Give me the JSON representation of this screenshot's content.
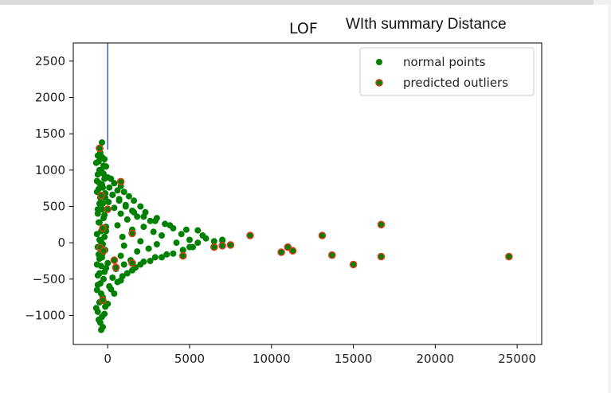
{
  "window": {
    "title": "LOF",
    "subtitle": "WIth summary Distance"
  },
  "colors": {
    "normal": "#008000",
    "outlier_edge": "#d2401a",
    "vline": "#1f4e96",
    "axes": "#000000"
  },
  "chart_data": {
    "type": "scatter",
    "title": "LOF",
    "xlabel": "",
    "ylabel": "",
    "xlim": [
      -2100,
      26500
    ],
    "ylim": [
      -1400,
      2750
    ],
    "x_ticks": [
      0,
      5000,
      10000,
      15000,
      20000,
      25000
    ],
    "y_ticks": [
      -1000,
      -500,
      0,
      500,
      1000,
      1500,
      2000,
      2500
    ],
    "vline_x": 0,
    "grid": false,
    "legend_position": "top-right",
    "series": [
      {
        "name": "normal points",
        "marker": "filled-circle",
        "color": "#008000",
        "points": [
          [
            -450,
            1300
          ],
          [
            -350,
            1380
          ],
          [
            -600,
            1200
          ],
          [
            -200,
            1150
          ],
          [
            -700,
            1100
          ],
          [
            -100,
            1050
          ],
          [
            -500,
            1000
          ],
          [
            -250,
            950
          ],
          [
            0,
            900
          ],
          [
            200,
            880
          ],
          [
            -650,
            850
          ],
          [
            400,
            820
          ],
          [
            -350,
            800
          ],
          [
            800,
            780
          ],
          [
            100,
            760
          ],
          [
            -550,
            740
          ],
          [
            600,
            720
          ],
          [
            1000,
            700
          ],
          [
            -150,
            680
          ],
          [
            300,
            660
          ],
          [
            1300,
            640
          ],
          [
            -450,
            620
          ],
          [
            700,
            600
          ],
          [
            1600,
            580
          ],
          [
            50,
            560
          ],
          [
            -300,
            540
          ],
          [
            1100,
            520
          ],
          [
            2000,
            500
          ],
          [
            400,
            480
          ],
          [
            -600,
            460
          ],
          [
            1500,
            440
          ],
          [
            2300,
            420
          ],
          [
            800,
            400
          ],
          [
            -200,
            380
          ],
          [
            1800,
            360
          ],
          [
            3000,
            340
          ],
          [
            1200,
            320
          ],
          [
            2600,
            300
          ],
          [
            -500,
            280
          ],
          [
            3500,
            260
          ],
          [
            600,
            240
          ],
          [
            2200,
            220
          ],
          [
            4000,
            200
          ],
          [
            1500,
            180
          ],
          [
            -100,
            160
          ],
          [
            2800,
            150
          ],
          [
            5500,
            170
          ],
          [
            4500,
            120
          ],
          [
            3300,
            100
          ],
          [
            900,
            80
          ],
          [
            6000,
            60
          ],
          [
            5000,
            40
          ],
          [
            2000,
            20
          ],
          [
            -400,
            10
          ],
          [
            7000,
            40
          ],
          [
            4200,
            0
          ],
          [
            3000,
            -20
          ],
          [
            1000,
            -40
          ],
          [
            -600,
            -60
          ],
          [
            5200,
            -60
          ],
          [
            2500,
            -80
          ],
          [
            4600,
            -100
          ],
          [
            1800,
            -120
          ],
          [
            -300,
            -140
          ],
          [
            3600,
            -160
          ],
          [
            800,
            -180
          ],
          [
            2900,
            -200
          ],
          [
            -500,
            -220
          ],
          [
            1400,
            -240
          ],
          [
            2200,
            -260
          ],
          [
            0,
            -280
          ],
          [
            1000,
            -300
          ],
          [
            -400,
            -320
          ],
          [
            1700,
            -340
          ],
          [
            500,
            -360
          ],
          [
            -200,
            -400
          ],
          [
            1200,
            -420
          ],
          [
            -600,
            -450
          ],
          [
            300,
            -480
          ],
          [
            800,
            -520
          ],
          [
            -450,
            -560
          ],
          [
            100,
            -600
          ],
          [
            -650,
            -650
          ],
          [
            400,
            -700
          ],
          [
            -300,
            -750
          ],
          [
            -500,
            -820
          ],
          [
            -150,
            -880
          ],
          [
            -600,
            -950
          ],
          [
            -350,
            -1020
          ],
          [
            -450,
            -1100
          ],
          [
            -300,
            -1160
          ],
          [
            -400,
            -1200
          ],
          [
            -550,
            -1060
          ],
          [
            -200,
            -980
          ],
          [
            -700,
            -900
          ],
          [
            0,
            -840
          ],
          [
            -400,
            -700
          ],
          [
            200,
            -640
          ],
          [
            -600,
            -580
          ],
          [
            600,
            -540
          ],
          [
            -250,
            -500
          ],
          [
            900,
            -460
          ],
          [
            -500,
            -420
          ],
          [
            1500,
            -380
          ],
          [
            -100,
            -350
          ],
          [
            2000,
            -300
          ],
          [
            -650,
            -300
          ],
          [
            2600,
            -250
          ],
          [
            -350,
            -200
          ],
          [
            3300,
            -200
          ],
          [
            -550,
            -160
          ],
          [
            4000,
            -150
          ],
          [
            -150,
            -100
          ],
          [
            4600,
            -100
          ],
          [
            -600,
            -60
          ],
          [
            5000,
            -60
          ],
          [
            -300,
            -20
          ],
          [
            5500,
            0
          ],
          [
            -500,
            40
          ],
          [
            6500,
            20
          ],
          [
            -200,
            80
          ],
          [
            7000,
            30
          ],
          [
            -650,
            120
          ],
          [
            5800,
            100
          ],
          [
            -400,
            160
          ],
          [
            4800,
            180
          ],
          [
            -100,
            220
          ],
          [
            3800,
            240
          ],
          [
            -550,
            280
          ],
          [
            2900,
            300
          ],
          [
            -250,
            340
          ],
          [
            2200,
            360
          ],
          [
            -600,
            400
          ],
          [
            1600,
            420
          ],
          [
            -350,
            460
          ],
          [
            1100,
            500
          ],
          [
            -500,
            540
          ],
          [
            700,
            580
          ],
          [
            -150,
            620
          ],
          [
            300,
            660
          ],
          [
            -650,
            700
          ],
          [
            -300,
            760
          ],
          [
            -500,
            820
          ],
          [
            -200,
            880
          ],
          [
            -600,
            940
          ],
          [
            -400,
            1000
          ],
          [
            -250,
            1060
          ],
          [
            -550,
            1120
          ],
          [
            -350,
            1180
          ],
          [
            -450,
            1240
          ]
        ]
      },
      {
        "name": "predicted outliers",
        "marker": "circle-outline",
        "color": "#d2401a",
        "points": [
          [
            -500,
            1300
          ],
          [
            800,
            840
          ],
          [
            -400,
            650
          ],
          [
            0,
            460
          ],
          [
            -300,
            200
          ],
          [
            1500,
            130
          ],
          [
            -450,
            -70
          ],
          [
            -250,
            -110
          ],
          [
            400,
            -240
          ],
          [
            500,
            -340
          ],
          [
            1500,
            -280
          ],
          [
            4600,
            -180
          ],
          [
            -300,
            -790
          ],
          [
            6500,
            -60
          ],
          [
            7000,
            -40
          ],
          [
            7500,
            -30
          ],
          [
            8700,
            100
          ],
          [
            10600,
            -130
          ],
          [
            11000,
            -60
          ],
          [
            11300,
            -110
          ],
          [
            13100,
            100
          ],
          [
            13700,
            -170
          ],
          [
            15000,
            -300
          ],
          [
            16700,
            250
          ],
          [
            16700,
            -190
          ],
          [
            24500,
            -190
          ]
        ]
      }
    ]
  }
}
